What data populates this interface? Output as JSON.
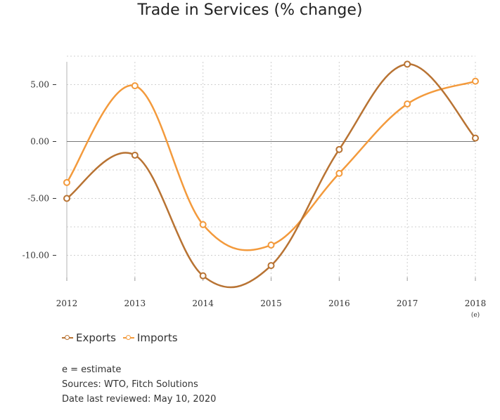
{
  "chart_data": {
    "type": "line",
    "title": "Trade in Services (% change)",
    "categories": [
      "2012",
      "2013",
      "2014",
      "2015",
      "2016",
      "2017",
      "2018"
    ],
    "category_sublabels": [
      "",
      "",
      "",
      "",
      "",
      "",
      "(e)"
    ],
    "series": [
      {
        "name": "Exports",
        "color": "#b87333",
        "values": [
          -5.0,
          -1.2,
          -11.8,
          -10.9,
          -0.7,
          6.8,
          0.3
        ]
      },
      {
        "name": "Imports",
        "color": "#f39a3c",
        "values": [
          -3.6,
          4.9,
          -7.3,
          -9.1,
          -2.8,
          3.3,
          5.3
        ]
      }
    ],
    "yticks": [
      "5.00",
      "0.00",
      "-5.00",
      "-10.00"
    ],
    "ytick_values": [
      5,
      0,
      -5,
      -10
    ],
    "ylim": [
      -12,
      7
    ],
    "grid": true,
    "legend_position": "bottom-left"
  },
  "notes": {
    "estimate": "e = estimate",
    "sources": "Sources: WTO, Fitch Solutions",
    "reviewed": "Date last reviewed: May 10, 2020"
  }
}
